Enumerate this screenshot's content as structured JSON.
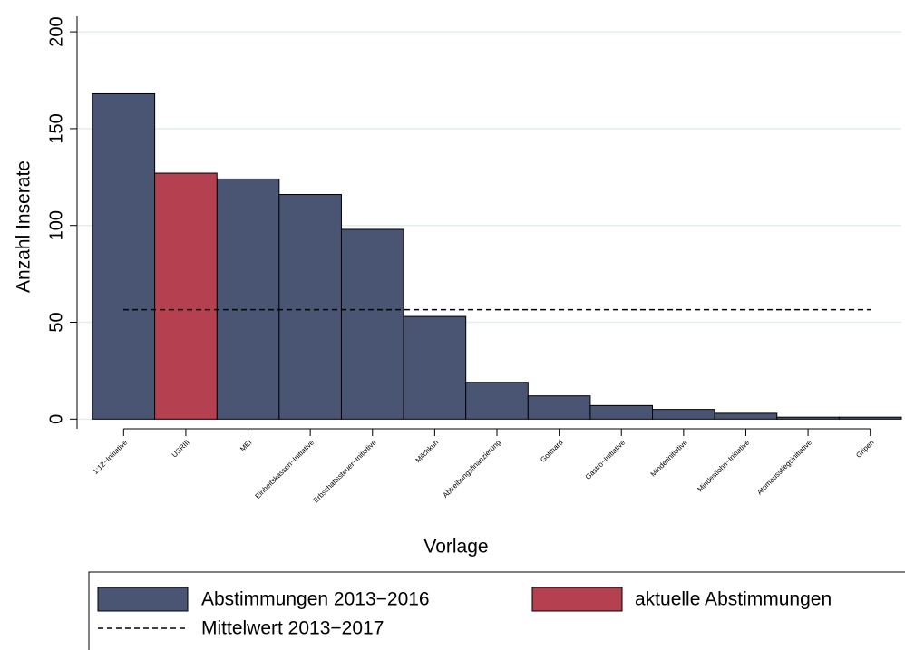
{
  "chart_data": {
    "type": "bar",
    "xlabel": "Vorlage",
    "ylabel": "Anzahl Inserate",
    "categories": [
      "1:12−Initiative",
      "USRIII",
      "MEI",
      "Einheitskassen−Initiative",
      "Erbschaftssteuer−Initiative",
      "Milchkuh",
      "Abtreibungsfinanzierung",
      "Gotthard",
      "Gastro−Initiative",
      "Minderinitiative",
      "Mindestlohn−Initiative",
      "Atomausstiegsinitiative",
      "Gripen"
    ],
    "series": [
      {
        "name": "Abstimmungen 2013−2016",
        "color": "#4a5573",
        "values": [
          168,
          null,
          124,
          116,
          98,
          53,
          19,
          12,
          7,
          5,
          3,
          1,
          1
        ]
      },
      {
        "name": "aktuelle Abstimmungen",
        "color": "#b5404f",
        "values": [
          null,
          127,
          null,
          null,
          null,
          null,
          null,
          null,
          null,
          null,
          null,
          null,
          null
        ]
      }
    ],
    "reference_line": {
      "name": "Mittelwert 2013−2017",
      "value": 56.5
    },
    "ylim": [
      -5,
      208
    ],
    "yticks": [
      0,
      50,
      100,
      150,
      200
    ],
    "grid": true
  }
}
